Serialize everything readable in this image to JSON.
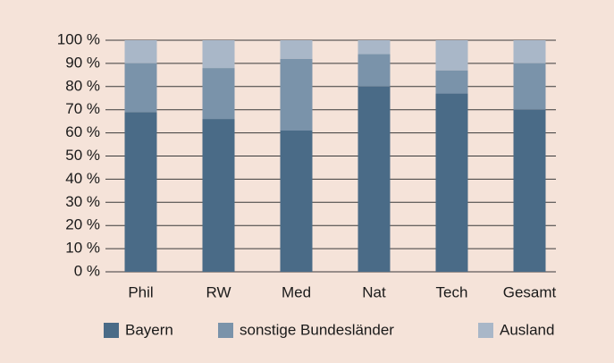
{
  "chart_data": {
    "type": "stacked_bar",
    "categories": [
      "Phil",
      "RW",
      "Med",
      "Nat",
      "Tech",
      "Gesamt"
    ],
    "series": [
      {
        "name": "Bayern",
        "color": "#4a6b87",
        "values": [
          69,
          66,
          61,
          80,
          77,
          70
        ]
      },
      {
        "name": "sonstige Bundesländer",
        "color": "#7a93aa",
        "values": [
          21,
          22,
          31,
          14,
          10,
          20
        ]
      },
      {
        "name": "Ausland",
        "color": "#a9b7c8",
        "values": [
          10,
          12,
          8,
          6,
          13,
          10
        ]
      }
    ],
    "ylim": [
      0,
      100
    ],
    "yticks": [
      {
        "value": 0,
        "label": "0 %"
      },
      {
        "value": 10,
        "label": "10 %"
      },
      {
        "value": 20,
        "label": "20 %"
      },
      {
        "value": 30,
        "label": "30 %"
      },
      {
        "value": 40,
        "label": "40 %"
      },
      {
        "value": 50,
        "label": "50 %"
      },
      {
        "value": 60,
        "label": "60 %"
      },
      {
        "value": 70,
        "label": "70 %"
      },
      {
        "value": 80,
        "label": "80 %"
      },
      {
        "value": 90,
        "label": "90 %"
      },
      {
        "value": 100,
        "label": "100 %"
      }
    ],
    "grid": true,
    "legend": "bottom"
  }
}
